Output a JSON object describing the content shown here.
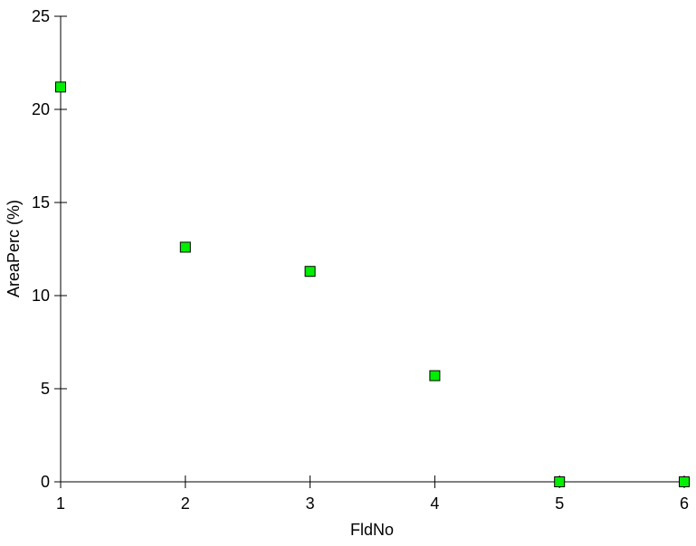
{
  "chart_data": {
    "type": "scatter",
    "title": "",
    "xlabel": "FldNo",
    "ylabel": "AreaPerc (%)",
    "xlim": [
      1,
      6
    ],
    "ylim": [
      0,
      25
    ],
    "x_ticks": [
      1,
      2,
      3,
      4,
      5,
      6
    ],
    "y_ticks": [
      0,
      5,
      10,
      15,
      20,
      25
    ],
    "grid": false,
    "marker": "square",
    "marker_color": "#00ee00",
    "marker_edge_color": "#000000",
    "points": [
      {
        "x": 1,
        "y": 21.2
      },
      {
        "x": 2,
        "y": 12.6
      },
      {
        "x": 3,
        "y": 11.3
      },
      {
        "x": 4,
        "y": 5.7
      },
      {
        "x": 5,
        "y": 0
      },
      {
        "x": 6,
        "y": 0
      }
    ]
  }
}
